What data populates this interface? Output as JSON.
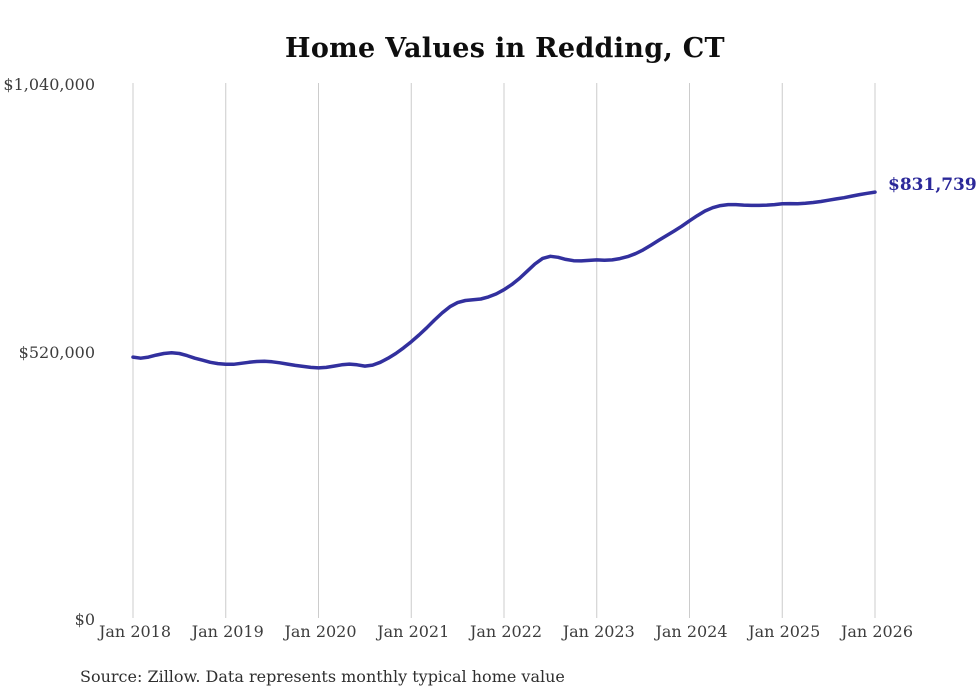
{
  "colors": {
    "background": "#ffffff",
    "gridline": "#cccccc",
    "line": "#32309e",
    "end_label": "#2b2899",
    "tick_text": "#3d3d3d",
    "title_text": "#0e0e0e"
  },
  "chart_data": {
    "type": "line",
    "title": "Home Values in Redding, CT",
    "source_note": "Source: Zillow. Data represents monthly typical home value",
    "xlabel": "",
    "ylabel": "",
    "frequency": "monthly",
    "x_start_label": "Jan 2018",
    "x_end_label": "Jan 2026",
    "ylim": [
      0,
      1040000
    ],
    "grid": "vertical-year-lines-only",
    "legend": "none",
    "x_ticks": [
      "Jan 2018",
      "Jan 2019",
      "Jan 2020",
      "Jan 2021",
      "Jan 2022",
      "Jan 2023",
      "Jan 2024",
      "Jan 2025",
      "Jan 2026"
    ],
    "y_ticks": [
      {
        "label": "$0",
        "value": 0
      },
      {
        "label": "$520,000",
        "value": 520000
      },
      {
        "label": "$1,040,000",
        "value": 1040000
      }
    ],
    "end_label": "$831,739",
    "end_value": 831739,
    "series": [
      {
        "name": "typical-home-value",
        "color": "#32309e",
        "values": [
          511000,
          509000,
          511000,
          515000,
          518000,
          519500,
          518000,
          514000,
          509000,
          505000,
          501000,
          498500,
          497000,
          497000,
          499000,
          501000,
          502500,
          503000,
          502000,
          500000,
          497500,
          495000,
          493000,
          491000,
          490000,
          491000,
          493500,
          496000,
          497500,
          496000,
          493500,
          495500,
          501000,
          509000,
          518000,
          529000,
          541000,
          554000,
          568000,
          583000,
          597000,
          609000,
          617000,
          621000,
          622500,
          624000,
          628000,
          634000,
          642000,
          652000,
          664000,
          678000,
          692000,
          703000,
          707000,
          705000,
          701000,
          698500,
          698000,
          699000,
          700000,
          699500,
          700000,
          702500,
          706500,
          712000,
          719500,
          728500,
          738000,
          747000,
          756000,
          765500,
          776000,
          786000,
          795000,
          801500,
          805500,
          807500,
          807500,
          806500,
          806000,
          806000,
          806500,
          807500,
          809000,
          809500,
          809000,
          810000,
          811500,
          813500,
          816000,
          818500,
          821000,
          824000,
          827000,
          829500,
          831739
        ]
      }
    ]
  }
}
